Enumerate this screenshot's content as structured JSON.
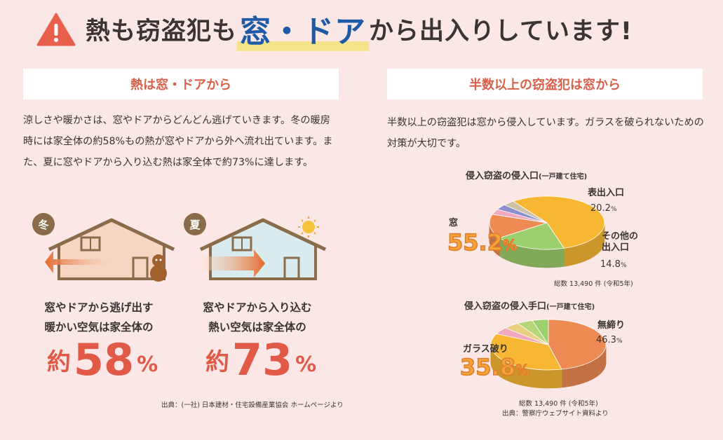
{
  "header": {
    "title_before": "熱も窃盗犯も",
    "title_accent": "窓・ドア",
    "title_after": "から出入りしています!"
  },
  "left": {
    "heading": "熱は窓・ドアから",
    "body": "涼しさや暖かさは、窓やドアからどんどん逃げていきます。冬の暖房時には家全体の約58%もの熱が窓やドアから外へ流れ出ています。また、夏に窓やドアから入り込む熱は家全体で約73%に達します。",
    "winter": {
      "badge": "冬",
      "caption1": "窓やドアから逃げ出す",
      "caption2": "暖かい空気は家全体の",
      "prefix": "約",
      "value": "58",
      "unit": "%"
    },
    "summer": {
      "badge": "夏",
      "caption1": "窓やドアから入り込む",
      "caption2": "熱い空気は家全体の",
      "prefix": "約",
      "value": "73",
      "unit": "%"
    },
    "source": "出典：(一社) 日本建材・住宅設備産業協会 ホームページより"
  },
  "right": {
    "heading": "半数以上の窃盗犯は窓から",
    "body": "半数以上の窃盗犯は窓から侵入しています。ガラスを破られないための対策が大切です。",
    "chart1": {
      "title": "侵入窃盗の侵入口",
      "title_note": "(一戸建て住宅)",
      "label_window": "窓",
      "value_window": "55.2",
      "label_front": "表出入口",
      "value_front": "20.2",
      "label_other1": "その他の",
      "label_other2": "出入口",
      "value_other": "14.8",
      "unit": "%",
      "total": "総数 13,490 件 (令和5年)"
    },
    "chart2": {
      "title": "侵入窃盗の侵入手口",
      "title_note": "(一戸建て住宅)",
      "label_unlocked": "無締り",
      "value_unlocked": "46.3",
      "label_glass": "ガラス破り",
      "value_glass": "35.8",
      "unit": "%",
      "total": "総数 13,490 件 (令和5年)",
      "source": "出典：警察庁ウェブサイト資料より"
    }
  },
  "chart_data": [
    {
      "type": "pie",
      "title": "侵入窃盗の侵入口",
      "categories": [
        "窓",
        "表出入口",
        "その他の出入口"
      ],
      "values": [
        55.2,
        20.2,
        14.8
      ],
      "colors": [
        "#f7b733",
        "#9ccf6e",
        "#ee8a54"
      ],
      "minor_slice_colors": [
        "#f2a8bd",
        "#8a8fd0",
        "#cfc0a8"
      ]
    },
    {
      "type": "pie",
      "title": "侵入窃盗の侵入手口",
      "categories": [
        "無締り",
        "ガラス破り"
      ],
      "values": [
        46.3,
        35.8
      ],
      "colors": [
        "#ee8a54",
        "#f7b733"
      ],
      "minor_slice_colors": [
        "#f2a8bd",
        "#e8d080",
        "#b6d67a",
        "#9ccf6e"
      ]
    }
  ]
}
